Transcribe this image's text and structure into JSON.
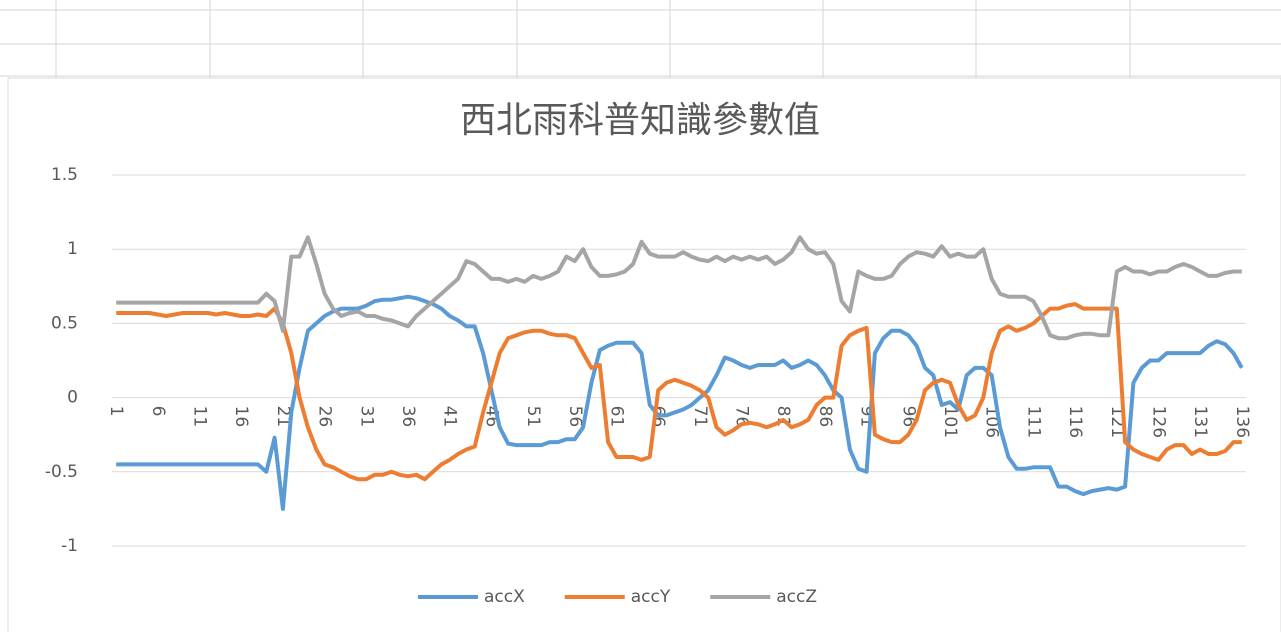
{
  "chart_data": {
    "type": "line",
    "title": "西北雨科普知識參數值",
    "categories": [
      1,
      null,
      null,
      null,
      null,
      6,
      null,
      null,
      null,
      null,
      11,
      null,
      null,
      null,
      null,
      16,
      null,
      null,
      null,
      null,
      21,
      null,
      null,
      null,
      null,
      26,
      null,
      null,
      null,
      null,
      31,
      null,
      null,
      null,
      null,
      36,
      null,
      null,
      null,
      null,
      41,
      null,
      null,
      null,
      null,
      46,
      null,
      null,
      null,
      null,
      51,
      null,
      null,
      null,
      null,
      56,
      null,
      null,
      null,
      null,
      61,
      null,
      null,
      null,
      null,
      66,
      null,
      null,
      null,
      null,
      71,
      null,
      null,
      null,
      null,
      76,
      null,
      null,
      null,
      null,
      81,
      null,
      null,
      null,
      null,
      86,
      null,
      null,
      null,
      null,
      91,
      null,
      null,
      null,
      null,
      96,
      null,
      null,
      null,
      null,
      101,
      null,
      null,
      null,
      null,
      106,
      null,
      null,
      null,
      null,
      111,
      null,
      null,
      null,
      null,
      116,
      null,
      null,
      null,
      null,
      121,
      null,
      null,
      null,
      null,
      126,
      null,
      null,
      null,
      null,
      131,
      null,
      null,
      null,
      null,
      136
    ],
    "series": [
      {
        "name": "accX",
        "color": "#5b9bd5",
        "values": [
          -0.45,
          -0.45,
          -0.45,
          -0.45,
          -0.45,
          -0.45,
          -0.45,
          -0.45,
          -0.45,
          -0.45,
          -0.45,
          -0.45,
          -0.45,
          -0.45,
          -0.45,
          -0.45,
          -0.45,
          -0.45,
          -0.5,
          -0.27,
          -0.75,
          -0.1,
          0.2,
          0.45,
          0.5,
          0.55,
          0.58,
          0.6,
          0.6,
          0.6,
          0.62,
          0.65,
          0.66,
          0.66,
          0.67,
          0.68,
          0.67,
          0.65,
          0.63,
          0.6,
          0.55,
          0.52,
          0.48,
          0.48,
          0.3,
          0.05,
          -0.2,
          -0.31,
          -0.32,
          -0.32,
          -0.32,
          -0.32,
          -0.3,
          -0.3,
          -0.28,
          -0.28,
          -0.2,
          0.1,
          0.32,
          0.35,
          0.37,
          0.37,
          0.37,
          0.3,
          -0.05,
          -0.12,
          -0.12,
          -0.1,
          -0.08,
          -0.05,
          0,
          0.05,
          0.15,
          0.27,
          0.25,
          0.22,
          0.2,
          0.22,
          0.22,
          0.22,
          0.25,
          0.2,
          0.22,
          0.25,
          0.22,
          0.15,
          0.05,
          0,
          -0.35,
          -0.48,
          -0.5,
          0.3,
          0.4,
          0.45,
          0.45,
          0.42,
          0.35,
          0.2,
          0.15,
          -0.05,
          -0.03,
          -0.08,
          0.15,
          0.2,
          0.2,
          0.15,
          -0.2,
          -0.4,
          -0.48,
          -0.48,
          -0.47,
          -0.47,
          -0.47,
          -0.6,
          -0.6,
          -0.63,
          -0.65,
          -0.63,
          -0.62,
          -0.61,
          -0.62,
          -0.6,
          0.1,
          0.2,
          0.25,
          0.25,
          0.3,
          0.3,
          0.3,
          0.3,
          0.3,
          0.35,
          0.38,
          0.36,
          0.3,
          0.2
        ]
      },
      {
        "name": "accY",
        "color": "#ed7d31",
        "values": [
          0.57,
          0.57,
          0.57,
          0.57,
          0.57,
          0.56,
          0.55,
          0.56,
          0.57,
          0.57,
          0.57,
          0.57,
          0.56,
          0.57,
          0.56,
          0.55,
          0.55,
          0.56,
          0.55,
          0.6,
          0.5,
          0.3,
          0,
          -0.2,
          -0.35,
          -0.45,
          -0.47,
          -0.5,
          -0.53,
          -0.55,
          -0.55,
          -0.52,
          -0.52,
          -0.5,
          -0.52,
          -0.53,
          -0.52,
          -0.55,
          -0.5,
          -0.45,
          -0.42,
          -0.38,
          -0.35,
          -0.33,
          -0.1,
          0.1,
          0.3,
          0.4,
          0.42,
          0.44,
          0.45,
          0.45,
          0.43,
          0.42,
          0.42,
          0.4,
          0.3,
          0.2,
          0.22,
          -0.3,
          -0.4,
          -0.4,
          -0.4,
          -0.42,
          -0.4,
          0.05,
          0.1,
          0.12,
          0.1,
          0.08,
          0.05,
          0,
          -0.2,
          -0.25,
          -0.22,
          -0.18,
          -0.17,
          -0.18,
          -0.2,
          -0.18,
          -0.15,
          -0.2,
          -0.18,
          -0.15,
          -0.05,
          0,
          0,
          0.35,
          0.42,
          0.45,
          0.47,
          -0.25,
          -0.28,
          -0.3,
          -0.3,
          -0.25,
          -0.15,
          0.05,
          0.1,
          0.12,
          0.1,
          -0.05,
          -0.15,
          -0.12,
          0,
          0.3,
          0.45,
          0.48,
          0.45,
          0.47,
          0.5,
          0.55,
          0.6,
          0.6,
          0.62,
          0.63,
          0.6,
          0.6,
          0.6,
          0.6,
          0.6,
          -0.3,
          -0.35,
          -0.38,
          -0.4,
          -0.42,
          -0.35,
          -0.32,
          -0.32,
          -0.38,
          -0.35,
          -0.38,
          -0.38,
          -0.36,
          -0.3,
          -0.3
        ]
      },
      {
        "name": "accZ",
        "color": "#a5a5a5",
        "values": [
          0.64,
          0.64,
          0.64,
          0.64,
          0.64,
          0.64,
          0.64,
          0.64,
          0.64,
          0.64,
          0.64,
          0.64,
          0.64,
          0.64,
          0.64,
          0.64,
          0.64,
          0.64,
          0.7,
          0.65,
          0.45,
          0.95,
          0.95,
          1.08,
          0.9,
          0.7,
          0.6,
          0.55,
          0.57,
          0.58,
          0.55,
          0.55,
          0.53,
          0.52,
          0.5,
          0.48,
          0.55,
          0.6,
          0.65,
          0.7,
          0.75,
          0.8,
          0.92,
          0.9,
          0.85,
          0.8,
          0.8,
          0.78,
          0.8,
          0.78,
          0.82,
          0.8,
          0.82,
          0.85,
          0.95,
          0.92,
          1,
          0.88,
          0.82,
          0.82,
          0.83,
          0.85,
          0.9,
          1.05,
          0.97,
          0.95,
          0.95,
          0.95,
          0.98,
          0.95,
          0.93,
          0.92,
          0.95,
          0.92,
          0.95,
          0.93,
          0.95,
          0.93,
          0.95,
          0.9,
          0.93,
          0.98,
          1.08,
          1,
          0.97,
          0.98,
          0.9,
          0.65,
          0.58,
          0.85,
          0.82,
          0.8,
          0.8,
          0.82,
          0.9,
          0.95,
          0.98,
          0.97,
          0.95,
          1.02,
          0.95,
          0.97,
          0.95,
          0.95,
          1,
          0.8,
          0.7,
          0.68,
          0.68,
          0.68,
          0.65,
          0.55,
          0.42,
          0.4,
          0.4,
          0.42,
          0.43,
          0.43,
          0.42,
          0.42,
          0.85,
          0.88,
          0.85,
          0.85,
          0.83,
          0.85,
          0.85,
          0.88,
          0.9,
          0.88,
          0.85,
          0.82,
          0.82,
          0.84,
          0.85,
          0.85
        ]
      }
    ],
    "ylim": [
      -1,
      1.5
    ],
    "yticks": [
      -1,
      -0.5,
      0,
      0.5,
      1,
      1.5
    ],
    "grid": true,
    "legend": "bottom"
  }
}
